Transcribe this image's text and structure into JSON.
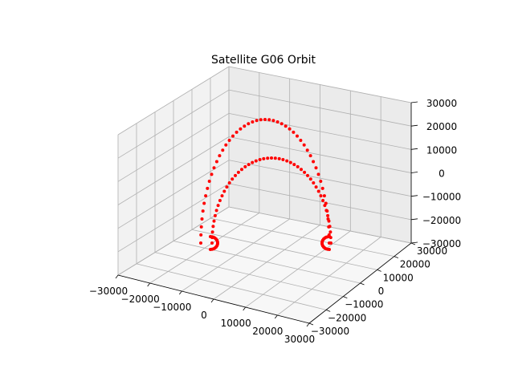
{
  "chart_data": {
    "type": "scatter",
    "projection": "3d",
    "title": "Satellite  G06  Orbit",
    "xlabel": "",
    "ylabel": "",
    "zlabel": "",
    "xlim": [
      -30000,
      30000
    ],
    "ylim": [
      -30000,
      30000
    ],
    "zlim": [
      -30000,
      30000
    ],
    "x_ticks": [
      "−30000",
      "−20000",
      "−10000",
      "0",
      "10000",
      "20000",
      "30000"
    ],
    "y_ticks": [
      "−30000",
      "−20000",
      "−10000",
      "0",
      "10000",
      "20000",
      "30000"
    ],
    "z_ticks": [
      "−30000",
      "−20000",
      "−10000",
      "0",
      "10000",
      "20000",
      "30000"
    ],
    "grid": true,
    "marker_color": "#ff0000",
    "orbit": {
      "shape": "two interleaved arcs with low-altitude loops at each end",
      "z_range": [
        -30000,
        30000
      ],
      "samples_per_arc": 48
    }
  }
}
